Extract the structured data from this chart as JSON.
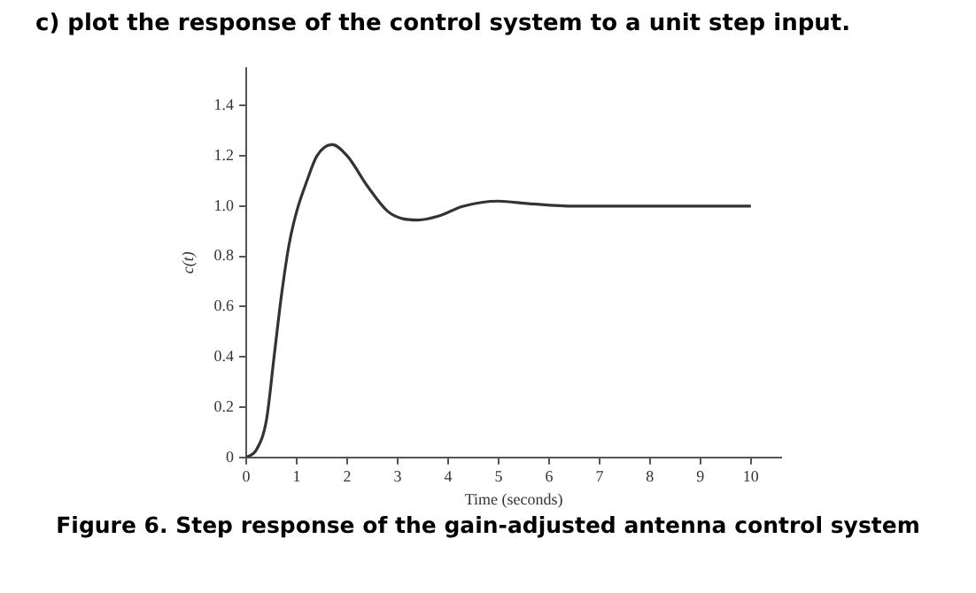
{
  "chart_data": {
    "type": "line",
    "title": "c) plot the response of the control system to a unit step input.",
    "xlabel": "Time (seconds)",
    "ylabel": "c(t)",
    "annotations": [
      "Figure 6. Step response of the gain-adjusted antenna control system"
    ],
    "series": [
      {
        "color": "#333333",
        "x": [
          0,
          0.2,
          0.4,
          0.55,
          0.7,
          0.85,
          1.0,
          1.2,
          1.4,
          1.7,
          2.0,
          2.4,
          2.8,
          3.1,
          3.4,
          3.8,
          4.3,
          5.0,
          5.6,
          6.5,
          10
        ],
        "values": [
          0,
          0.03,
          0.15,
          0.4,
          0.65,
          0.85,
          0.98,
          1.1,
          1.2,
          1.245,
          1.2,
          1.08,
          0.98,
          0.95,
          0.945,
          0.96,
          1.0,
          1.02,
          1.01,
          1.0,
          1.0
        ]
      }
    ],
    "xlim": [
      0,
      10.6
    ],
    "xticks": [
      0,
      1,
      2,
      3,
      4,
      5,
      6,
      7,
      8,
      9,
      10
    ],
    "ylim": [
      0,
      1.55
    ],
    "yticks": [
      0,
      0.2,
      0.4,
      0.6,
      0.8,
      {
        "value": 1,
        "label": "1.0"
      },
      1.2,
      1.4
    ],
    "grid": false,
    "legend": false,
    "marker": "none",
    "line_style": "solid"
  }
}
